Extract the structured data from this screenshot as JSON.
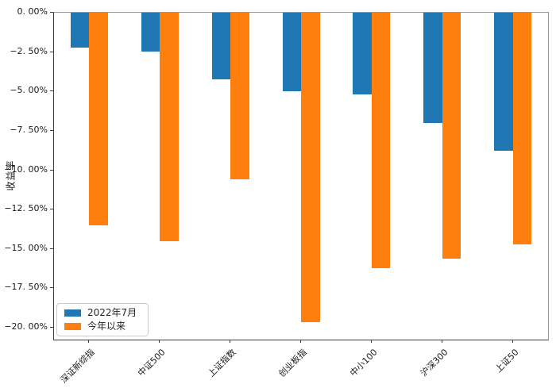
{
  "chart_data": {
    "type": "bar",
    "title": "",
    "xlabel": "",
    "ylabel": "收益率",
    "categories": [
      "深证新综指",
      "中证500",
      "上证指数",
      "创业板指",
      "中小100",
      "沪深300",
      "上证50"
    ],
    "series": [
      {
        "name": "2022年7月",
        "color": "#1f77b4",
        "values": [
          -2.2,
          -2.45,
          -4.25,
          -5.0,
          -5.2,
          -7.0,
          -8.75
        ]
      },
      {
        "name": "今年以来",
        "color": "#ff7f0e",
        "values": [
          -13.5,
          -14.5,
          -10.6,
          -19.65,
          -16.2,
          -15.6,
          -14.7
        ]
      }
    ],
    "ylim": [
      -20.76,
      0
    ],
    "yticks": {
      "values": [
        0,
        -2.5,
        -5,
        -7.5,
        -10,
        -12.5,
        -15,
        -17.5,
        -20
      ],
      "labels": [
        "0. 00%",
        "−2. 50%",
        "−5. 00%",
        "−7. 50%",
        "−10. 00%",
        "−12. 50%",
        "−15. 00%",
        "−17. 50%",
        "−20. 00%"
      ]
    },
    "legend": {
      "position": "lower left",
      "entries": [
        "2022年7月",
        "今年以来"
      ]
    },
    "grid": false,
    "background": "#ffffff",
    "unit": "percent"
  }
}
